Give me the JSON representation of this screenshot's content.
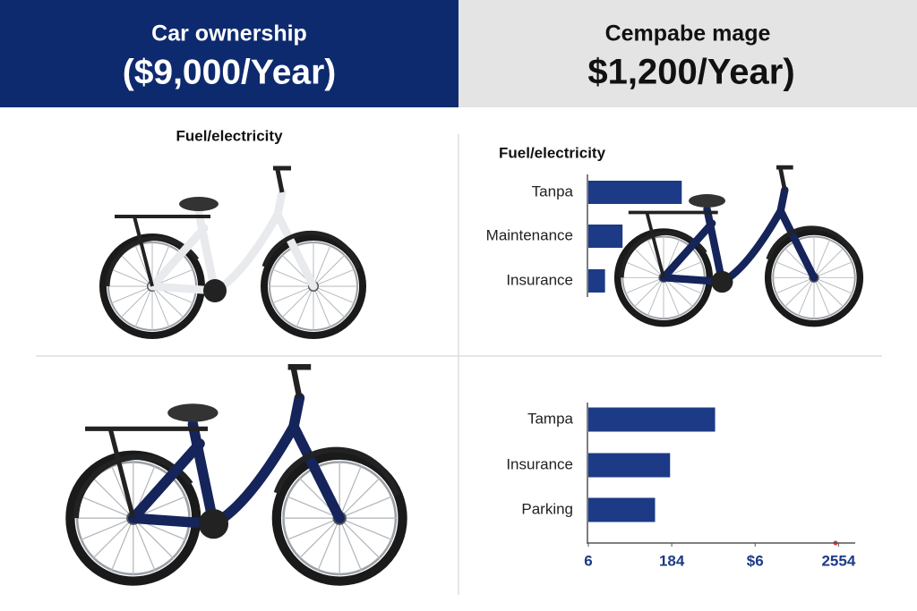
{
  "header": {
    "left": {
      "title": "Car ownership",
      "amount": "($9,000/Year)"
    },
    "right": {
      "title": "Cempabe mage",
      "amount": "$1,200/Year)"
    }
  },
  "left_label": "Fuel/electricity",
  "chart_data": [
    {
      "type": "bar",
      "title": "Fuel/electricity",
      "categories": [
        "Tanpa",
        "Maintenance",
        "Insurance"
      ],
      "values": [
        112,
        41,
        20
      ],
      "color": "#1c3a85",
      "xlim": [
        0,
        320
      ]
    },
    {
      "type": "bar",
      "categories": [
        "Tampa",
        "Insurance",
        "Parking"
      ],
      "values": [
        152,
        98,
        80
      ],
      "color": "#1c3a85",
      "xlim": [
        0,
        320
      ],
      "xticks": [
        {
          "value": 0,
          "label": "6"
        },
        {
          "value": 100,
          "label": "184"
        },
        {
          "value": 200,
          "label": "$6"
        },
        {
          "value": 300,
          "label": "2554"
        }
      ]
    }
  ]
}
